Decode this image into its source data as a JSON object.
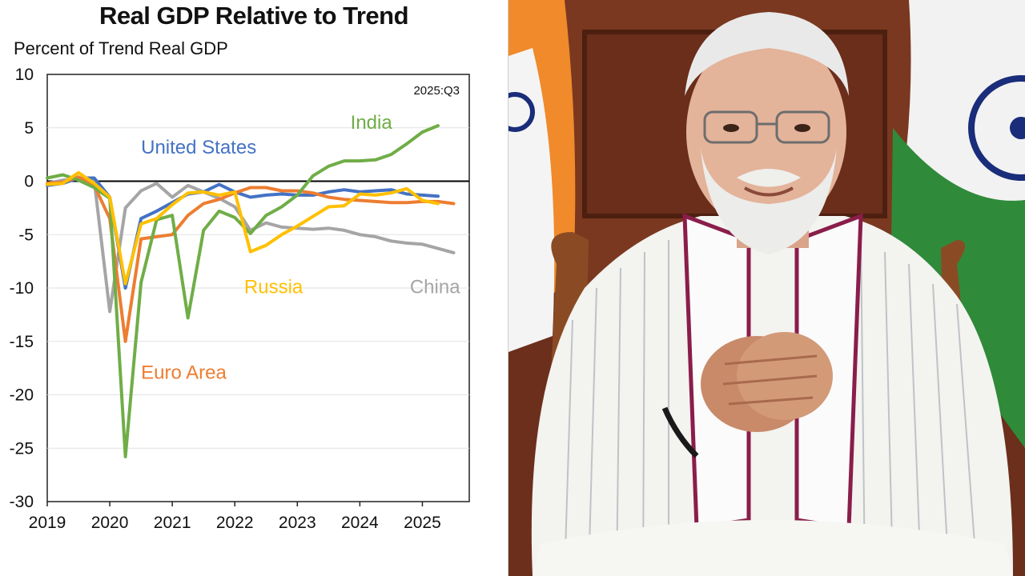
{
  "colors": {
    "us": "#4472C4",
    "india": "#70AD47",
    "euro": "#ED7D31",
    "russia": "#FFC000",
    "china": "#A5A5A5"
  },
  "photo": {
    "icon": "portrait-photo"
  },
  "chart_data": {
    "type": "line",
    "title": "Real GDP Relative to Trend",
    "ylabel": "Percent of Trend Real GDP",
    "annotation": "2025:Q3",
    "xlim": [
      2019.0,
      2025.75
    ],
    "ylim": [
      -30,
      10
    ],
    "yticks": [
      10,
      5,
      0,
      -5,
      -10,
      -15,
      -20,
      -25,
      -30
    ],
    "xticks": [
      "2019",
      "2020",
      "2021",
      "2022",
      "2023",
      "2024",
      "2025"
    ],
    "series": [
      {
        "name": "United States",
        "color": "#4472C4",
        "label_anchor": [
          2020.5,
          2.6
        ],
        "x": [
          2019.0,
          2019.25,
          2019.5,
          2019.75,
          2020.0,
          2020.25,
          2020.5,
          2020.75,
          2021.0,
          2021.25,
          2021.5,
          2021.75,
          2022.0,
          2022.25,
          2022.5,
          2022.75,
          2023.0,
          2023.25,
          2023.5,
          2023.75,
          2024.0,
          2024.25,
          2024.5,
          2024.75,
          2025.0,
          2025.25
        ],
        "values": [
          -0.4,
          -0.2,
          0.3,
          0.3,
          -1.5,
          -10.0,
          -3.5,
          -2.8,
          -2.0,
          -1.2,
          -1.0,
          -0.3,
          -1.0,
          -1.5,
          -1.3,
          -1.2,
          -1.3,
          -1.3,
          -1.0,
          -0.8,
          -1.0,
          -0.9,
          -0.8,
          -1.2,
          -1.3,
          -1.4
        ]
      },
      {
        "name": "India",
        "color": "#70AD47",
        "label_anchor": [
          2023.85,
          4.9
        ],
        "x": [
          2019.0,
          2019.25,
          2019.5,
          2019.75,
          2020.0,
          2020.25,
          2020.5,
          2020.75,
          2021.0,
          2021.25,
          2021.5,
          2021.75,
          2022.0,
          2022.25,
          2022.5,
          2022.75,
          2023.0,
          2023.25,
          2023.5,
          2023.75,
          2024.0,
          2024.25,
          2024.5,
          2024.75,
          2025.0,
          2025.25
        ],
        "values": [
          0.3,
          0.6,
          0.1,
          -0.6,
          -1.6,
          -25.8,
          -9.5,
          -3.6,
          -3.2,
          -12.8,
          -4.6,
          -2.8,
          -3.4,
          -4.9,
          -3.2,
          -2.4,
          -1.3,
          0.5,
          1.4,
          1.9,
          1.9,
          2.0,
          2.5,
          3.5,
          4.6,
          5.2
        ]
      },
      {
        "name": "Euro Area",
        "color": "#ED7D31",
        "label_anchor": [
          2020.5,
          -18.5
        ],
        "x": [
          2019.0,
          2019.25,
          2019.5,
          2019.75,
          2020.0,
          2020.25,
          2020.5,
          2020.75,
          2021.0,
          2021.25,
          2021.5,
          2021.75,
          2022.0,
          2022.25,
          2022.5,
          2022.75,
          2023.0,
          2023.25,
          2023.5,
          2023.75,
          2024.0,
          2024.25,
          2024.5,
          2024.75,
          2025.0,
          2025.25,
          2025.5
        ],
        "values": [
          -0.2,
          -0.1,
          0.4,
          -0.4,
          -3.5,
          -15.0,
          -5.4,
          -5.2,
          -5.0,
          -3.2,
          -2.1,
          -1.7,
          -1.1,
          -0.6,
          -0.6,
          -0.9,
          -0.9,
          -1.1,
          -1.5,
          -1.7,
          -1.8,
          -1.9,
          -2.0,
          -2.0,
          -1.9,
          -1.9,
          -2.1
        ]
      },
      {
        "name": "Russia",
        "color": "#FFC000",
        "label_anchor": [
          2022.15,
          -10.5
        ],
        "x": [
          2019.0,
          2019.25,
          2019.5,
          2019.75,
          2020.0,
          2020.25,
          2020.5,
          2020.75,
          2021.0,
          2021.25,
          2021.5,
          2021.75,
          2022.0,
          2022.25,
          2022.5,
          2022.75,
          2023.0,
          2023.25,
          2023.5,
          2023.75,
          2024.0,
          2024.25,
          2024.5,
          2024.75,
          2025.0,
          2025.25
        ],
        "values": [
          -0.3,
          -0.2,
          0.8,
          -0.2,
          -1.5,
          -9.6,
          -4.0,
          -3.5,
          -2.2,
          -1.1,
          -1.0,
          -1.3,
          -1.0,
          -6.6,
          -6.0,
          -5.0,
          -4.2,
          -3.3,
          -2.4,
          -2.3,
          -1.2,
          -1.3,
          -1.1,
          -0.7,
          -1.8,
          -2.1
        ]
      },
      {
        "name": "China",
        "color": "#A5A5A5",
        "label_anchor": [
          2024.8,
          -10.5
        ],
        "x": [
          2019.0,
          2019.25,
          2019.5,
          2019.75,
          2020.0,
          2020.25,
          2020.5,
          2020.75,
          2021.0,
          2021.25,
          2021.5,
          2021.75,
          2022.0,
          2022.25,
          2022.5,
          2022.75,
          2023.0,
          2023.25,
          2023.5,
          2023.75,
          2024.0,
          2024.25,
          2024.5,
          2024.75,
          2025.0,
          2025.25,
          2025.5
        ],
        "values": [
          -0.2,
          0.1,
          0.2,
          0.1,
          -12.2,
          -2.5,
          -0.9,
          -0.2,
          -1.5,
          -0.4,
          -1.0,
          -1.6,
          -2.4,
          -4.6,
          -3.9,
          -4.3,
          -4.4,
          -4.5,
          -4.4,
          -4.6,
          -5.0,
          -5.2,
          -5.6,
          -5.8,
          -5.9,
          -6.3,
          -6.7
        ]
      }
    ]
  }
}
